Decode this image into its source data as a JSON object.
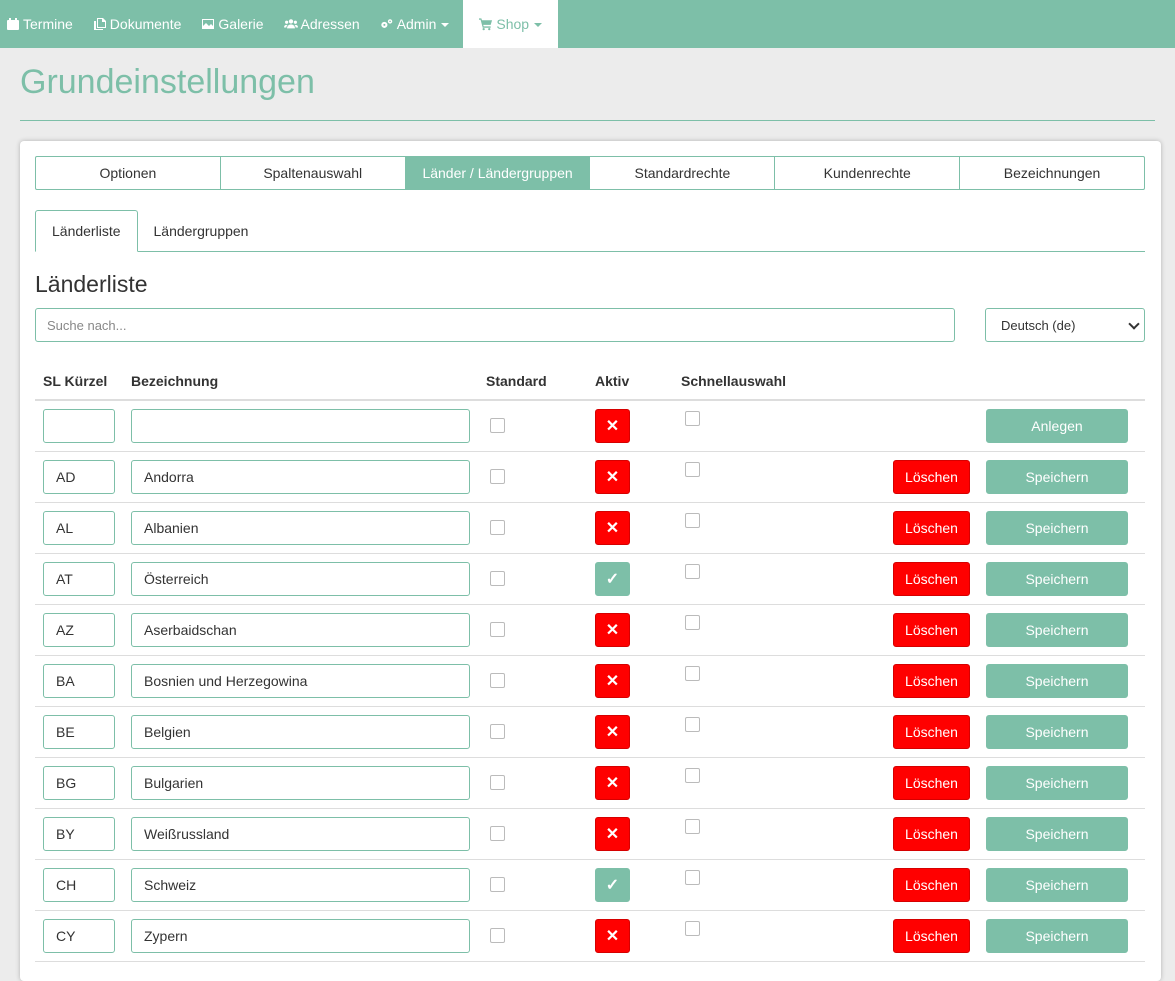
{
  "nav": {
    "items": [
      {
        "label": "Termine",
        "icon": "calendar-icon"
      },
      {
        "label": "Dokumente",
        "icon": "documents-icon"
      },
      {
        "label": "Galerie",
        "icon": "picture-icon"
      },
      {
        "label": "Adressen",
        "icon": "users-icon"
      },
      {
        "label": "Admin",
        "icon": "gears-icon"
      },
      {
        "label": "Shop",
        "icon": "cart-icon"
      }
    ]
  },
  "page": {
    "title": "Grundeinstellungen"
  },
  "main_tabs": [
    "Optionen",
    "Spaltenauswahl",
    "Länder / Ländergruppen",
    "Standardrechte",
    "Kundenrechte",
    "Bezeichnungen"
  ],
  "sub_tabs": [
    "Länderliste",
    "Ländergruppen"
  ],
  "section": {
    "title": "Länderliste"
  },
  "search": {
    "placeholder": "Suche nach..."
  },
  "language": {
    "selected": "Deutsch (de)"
  },
  "table": {
    "headers": {
      "sl": "SL Kürzel",
      "bez": "Bezeichnung",
      "standard": "Standard",
      "aktiv": "Aktiv",
      "schnell": "Schnellauswahl"
    },
    "create_label": "Anlegen",
    "delete_label": "Löschen",
    "save_label": "Speichern",
    "rows": [
      {
        "code": "AD",
        "name": "Andorra",
        "aktiv": false
      },
      {
        "code": "AL",
        "name": "Albanien",
        "aktiv": false
      },
      {
        "code": "AT",
        "name": "Österreich",
        "aktiv": true
      },
      {
        "code": "AZ",
        "name": "Aserbaidschan",
        "aktiv": false
      },
      {
        "code": "BA",
        "name": "Bosnien und Herzegowina",
        "aktiv": false
      },
      {
        "code": "BE",
        "name": "Belgien",
        "aktiv": false
      },
      {
        "code": "BG",
        "name": "Bulgarien",
        "aktiv": false
      },
      {
        "code": "BY",
        "name": "Weißrussland",
        "aktiv": false
      },
      {
        "code": "CH",
        "name": "Schweiz",
        "aktiv": true
      },
      {
        "code": "CY",
        "name": "Zypern",
        "aktiv": false
      }
    ]
  },
  "colors": {
    "accent": "#7dbfa8",
    "danger": "#ff0000"
  }
}
